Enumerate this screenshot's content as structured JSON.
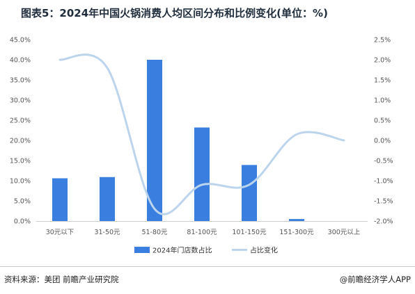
{
  "header": {
    "title": "图表5：2024年中国火锅消费人均区间分布和比例变化(单位：%)"
  },
  "footer": {
    "source": "资料来源：美团 前瞻产业研究院",
    "credit": "@前瞻经济学人APP"
  },
  "colors": {
    "bar": "#3a7fe0",
    "line": "#bcd4ec",
    "axis": "#cccccc"
  },
  "chart_data": {
    "type": "bar",
    "title": "图表5：2024年中国火锅消费人均区间分布和比例变化(单位：%)",
    "categories": [
      "30元以下",
      "31-50元",
      "51-80元",
      "81-100元",
      "101-150元",
      "151-300元",
      "300元以上"
    ],
    "series": [
      {
        "name": "2024年门店数占比",
        "type": "bar",
        "axis": "left",
        "values": [
          10.6,
          10.9,
          40.0,
          23.2,
          13.9,
          0.5,
          0.0
        ]
      },
      {
        "name": "占比变化",
        "type": "line",
        "axis": "right",
        "smooth": true,
        "values": [
          2.0,
          1.8,
          -1.7,
          -1.1,
          -1.1,
          0.15,
          0.0
        ]
      }
    ],
    "y_left": {
      "ylim": [
        0,
        45
      ],
      "ticks": [
        0,
        5,
        10,
        15,
        20,
        25,
        30,
        35,
        40,
        45
      ],
      "tick_labels": [
        "0.0%",
        "5.0%",
        "10.0%",
        "15.0%",
        "20.0%",
        "25.0%",
        "30.0%",
        "35.0%",
        "40.0%",
        "45.0%"
      ]
    },
    "y_right": {
      "ylim": [
        -2.0,
        2.5
      ],
      "ticks": [
        -2.0,
        -1.5,
        -1.0,
        -0.5,
        0.0,
        0.5,
        1.0,
        1.5,
        2.0,
        2.5
      ],
      "tick_labels": [
        "-2.0%",
        "-1.5%",
        "-1.0%",
        "-0.5%",
        "0.0%",
        "0.5%",
        "1.0%",
        "1.5%",
        "2.0%",
        "2.5%"
      ]
    },
    "grid": false,
    "legend": {
      "position": "bottom",
      "entries": [
        "2024年门店数占比",
        "占比变化"
      ]
    }
  }
}
